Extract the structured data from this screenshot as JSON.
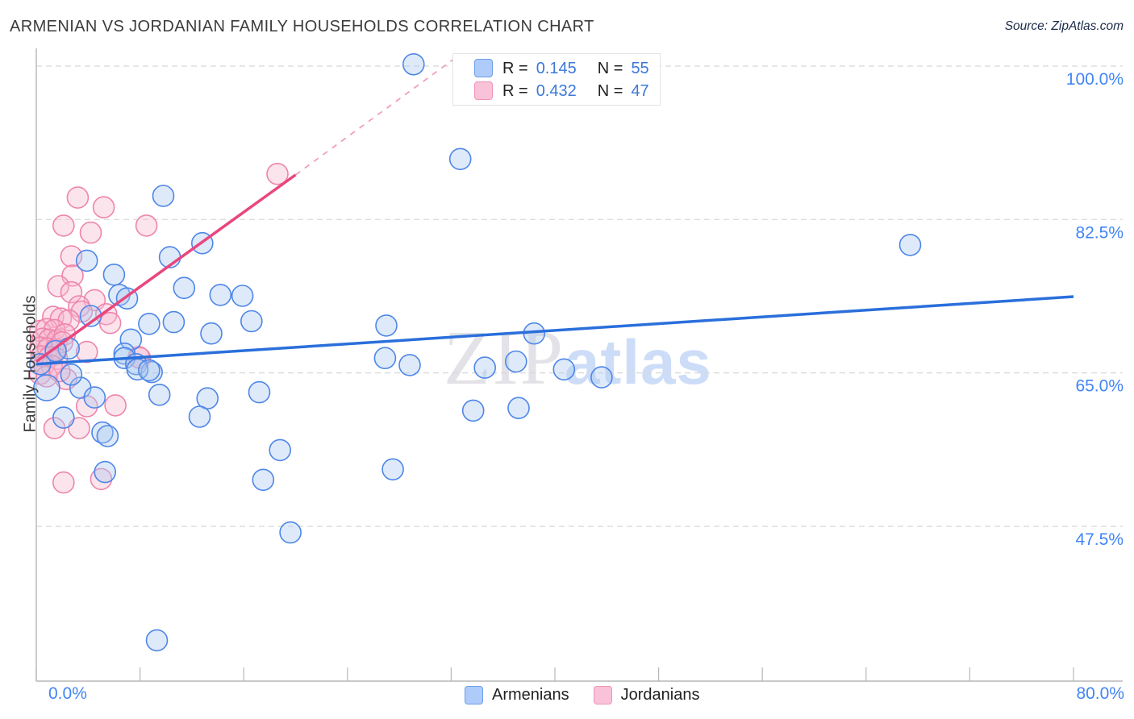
{
  "title": "ARMENIAN VS JORDANIAN FAMILY HOUSEHOLDS CORRELATION CHART",
  "source": "Source: ZipAtlas.com",
  "watermark": {
    "zip": "ZIP",
    "atlas": "atlas"
  },
  "y_axis_label": "Family Households",
  "legend_box": {
    "rows": [
      {
        "series": "Armenians",
        "r_label": "R =",
        "r_value": "0.145",
        "n_label": "N =",
        "n_value": "55"
      },
      {
        "series": "Jordanians",
        "r_label": "R =",
        "r_value": "0.432",
        "n_label": "N =",
        "n_value": "47"
      }
    ]
  },
  "bottom_legend": {
    "armenians_label": "Armenians",
    "jordanians_label": "Jordanians"
  },
  "x_axis": {
    "min_label": "0.0%",
    "max_label": "80.0%"
  },
  "colors": {
    "blue_stroke": "#4e86e8",
    "blue_fill": "#a8c8f0",
    "pink_stroke": "#ee85ab",
    "pink_fill": "#f6b8d0",
    "blue_trend": "#2a6fdb",
    "pink_trend": "#e8477e",
    "pink_trend_dashed": "#f09ebd",
    "gridline": "#d8d8d8",
    "axis": "#b7b7b7",
    "tick_label": "#4285f4"
  },
  "chart_data": {
    "type": "scatter",
    "title": "ARMENIAN VS JORDANIAN FAMILY HOUSEHOLDS CORRELATION CHART",
    "xlabel": "",
    "ylabel": "Family Households",
    "xlim": [
      0,
      80
    ],
    "x_tick_values": [
      0,
      8,
      16,
      24,
      32,
      40,
      48,
      56,
      64,
      72,
      80
    ],
    "y_gridlines": [
      {
        "value": 100.0,
        "label": "100.0%"
      },
      {
        "value": 82.5,
        "label": "82.5%"
      },
      {
        "value": 65.0,
        "label": "65.0%"
      },
      {
        "value": 47.5,
        "label": "47.5%"
      }
    ],
    "grid": "dashed-horizontal",
    "legend_position": "top-center and bottom-center",
    "series": [
      {
        "name": "Armenians",
        "R": 0.145,
        "N": 55,
        "points": [
          [
            29.1,
            100.2
          ],
          [
            32.7,
            89.4
          ],
          [
            9.8,
            85.2
          ],
          [
            67.4,
            79.6
          ],
          [
            12.8,
            79.8
          ],
          [
            10.3,
            78.2
          ],
          [
            3.9,
            77.8
          ],
          [
            6.0,
            76.2
          ],
          [
            11.4,
            74.7
          ],
          [
            14.2,
            73.9
          ],
          [
            15.9,
            73.8
          ],
          [
            6.4,
            73.9
          ],
          [
            7.0,
            73.5
          ],
          [
            4.2,
            71.5
          ],
          [
            8.7,
            70.6
          ],
          [
            10.6,
            70.8
          ],
          [
            16.6,
            70.9
          ],
          [
            27.0,
            70.4
          ],
          [
            38.4,
            69.5
          ],
          [
            13.5,
            69.5
          ],
          [
            7.3,
            68.8
          ],
          [
            2.5,
            67.8
          ],
          [
            6.8,
            67.2
          ],
          [
            6.8,
            66.7
          ],
          [
            26.9,
            66.7
          ],
          [
            37.0,
            66.3
          ],
          [
            7.7,
            66.0
          ],
          [
            28.8,
            65.9
          ],
          [
            34.6,
            65.6
          ],
          [
            40.7,
            65.4
          ],
          [
            8.9,
            65.1
          ],
          [
            7.8,
            65.4
          ],
          [
            8.7,
            65.3
          ],
          [
            43.6,
            64.5
          ],
          [
            3.4,
            63.3
          ],
          [
            0.8,
            63.3,
            16
          ],
          [
            4.5,
            62.2
          ],
          [
            9.5,
            62.5
          ],
          [
            17.2,
            62.8
          ],
          [
            13.2,
            62.1
          ],
          [
            37.2,
            61.0
          ],
          [
            33.7,
            60.7
          ],
          [
            12.6,
            60.0
          ],
          [
            2.1,
            59.9
          ],
          [
            5.1,
            58.2
          ],
          [
            5.5,
            57.8
          ],
          [
            18.8,
            56.2
          ],
          [
            27.5,
            54.0
          ],
          [
            5.3,
            53.7
          ],
          [
            17.5,
            52.8
          ],
          [
            19.6,
            46.8
          ],
          [
            9.3,
            34.5
          ],
          [
            0.3,
            66.0
          ],
          [
            1.5,
            67.5
          ],
          [
            2.7,
            64.8
          ]
        ]
      },
      {
        "name": "Jordanians",
        "R": 0.432,
        "N": 47,
        "points": [
          [
            18.6,
            87.7
          ],
          [
            3.2,
            85.0
          ],
          [
            5.2,
            83.9
          ],
          [
            2.1,
            81.8
          ],
          [
            8.5,
            81.8
          ],
          [
            4.2,
            81.0
          ],
          [
            2.7,
            78.3
          ],
          [
            2.8,
            76.1
          ],
          [
            1.7,
            74.9
          ],
          [
            2.7,
            74.2
          ],
          [
            4.5,
            73.3
          ],
          [
            3.3,
            72.6
          ],
          [
            3.5,
            72.0
          ],
          [
            5.4,
            71.7
          ],
          [
            1.3,
            71.4
          ],
          [
            1.9,
            71.2
          ],
          [
            2.5,
            71.0
          ],
          [
            5.7,
            70.7
          ],
          [
            3.9,
            67.4
          ],
          [
            7.9,
            66.8
          ],
          [
            8.0,
            66.7
          ],
          [
            2.3,
            64.3
          ],
          [
            3.9,
            61.2
          ],
          [
            6.1,
            61.3
          ],
          [
            1.4,
            58.7
          ],
          [
            3.3,
            58.7
          ],
          [
            5.0,
            52.9
          ],
          [
            2.1,
            52.5
          ],
          [
            0.3,
            69.8
          ],
          [
            0.8,
            70.0
          ],
          [
            1.4,
            69.9
          ],
          [
            0.5,
            68.9
          ],
          [
            1.0,
            68.8
          ],
          [
            1.6,
            68.7
          ],
          [
            2.2,
            69.4
          ],
          [
            0.3,
            67.9
          ],
          [
            0.9,
            67.8
          ],
          [
            1.5,
            67.7
          ],
          [
            2.0,
            68.5
          ],
          [
            0.4,
            66.9
          ],
          [
            1.0,
            66.8
          ],
          [
            1.6,
            66.6
          ],
          [
            0.6,
            65.9
          ],
          [
            1.2,
            65.8
          ],
          [
            0.3,
            64.9
          ],
          [
            0.8,
            64.6
          ],
          [
            1.8,
            65.2
          ]
        ]
      }
    ],
    "trend_lines": [
      {
        "series": "Armenians",
        "x_start": 0,
        "y_start": 66.0,
        "x_end": 80,
        "y_end": 73.7,
        "style": "solid"
      },
      {
        "series": "Jordanians",
        "x_start": 0,
        "y_start": 66.3,
        "x_end": 20,
        "y_end": 87.6,
        "style": "solid"
      },
      {
        "series": "Jordanians",
        "x_start": 20,
        "y_start": 87.6,
        "x_end": 32.2,
        "y_end": 100.8,
        "style": "dashed"
      }
    ]
  }
}
